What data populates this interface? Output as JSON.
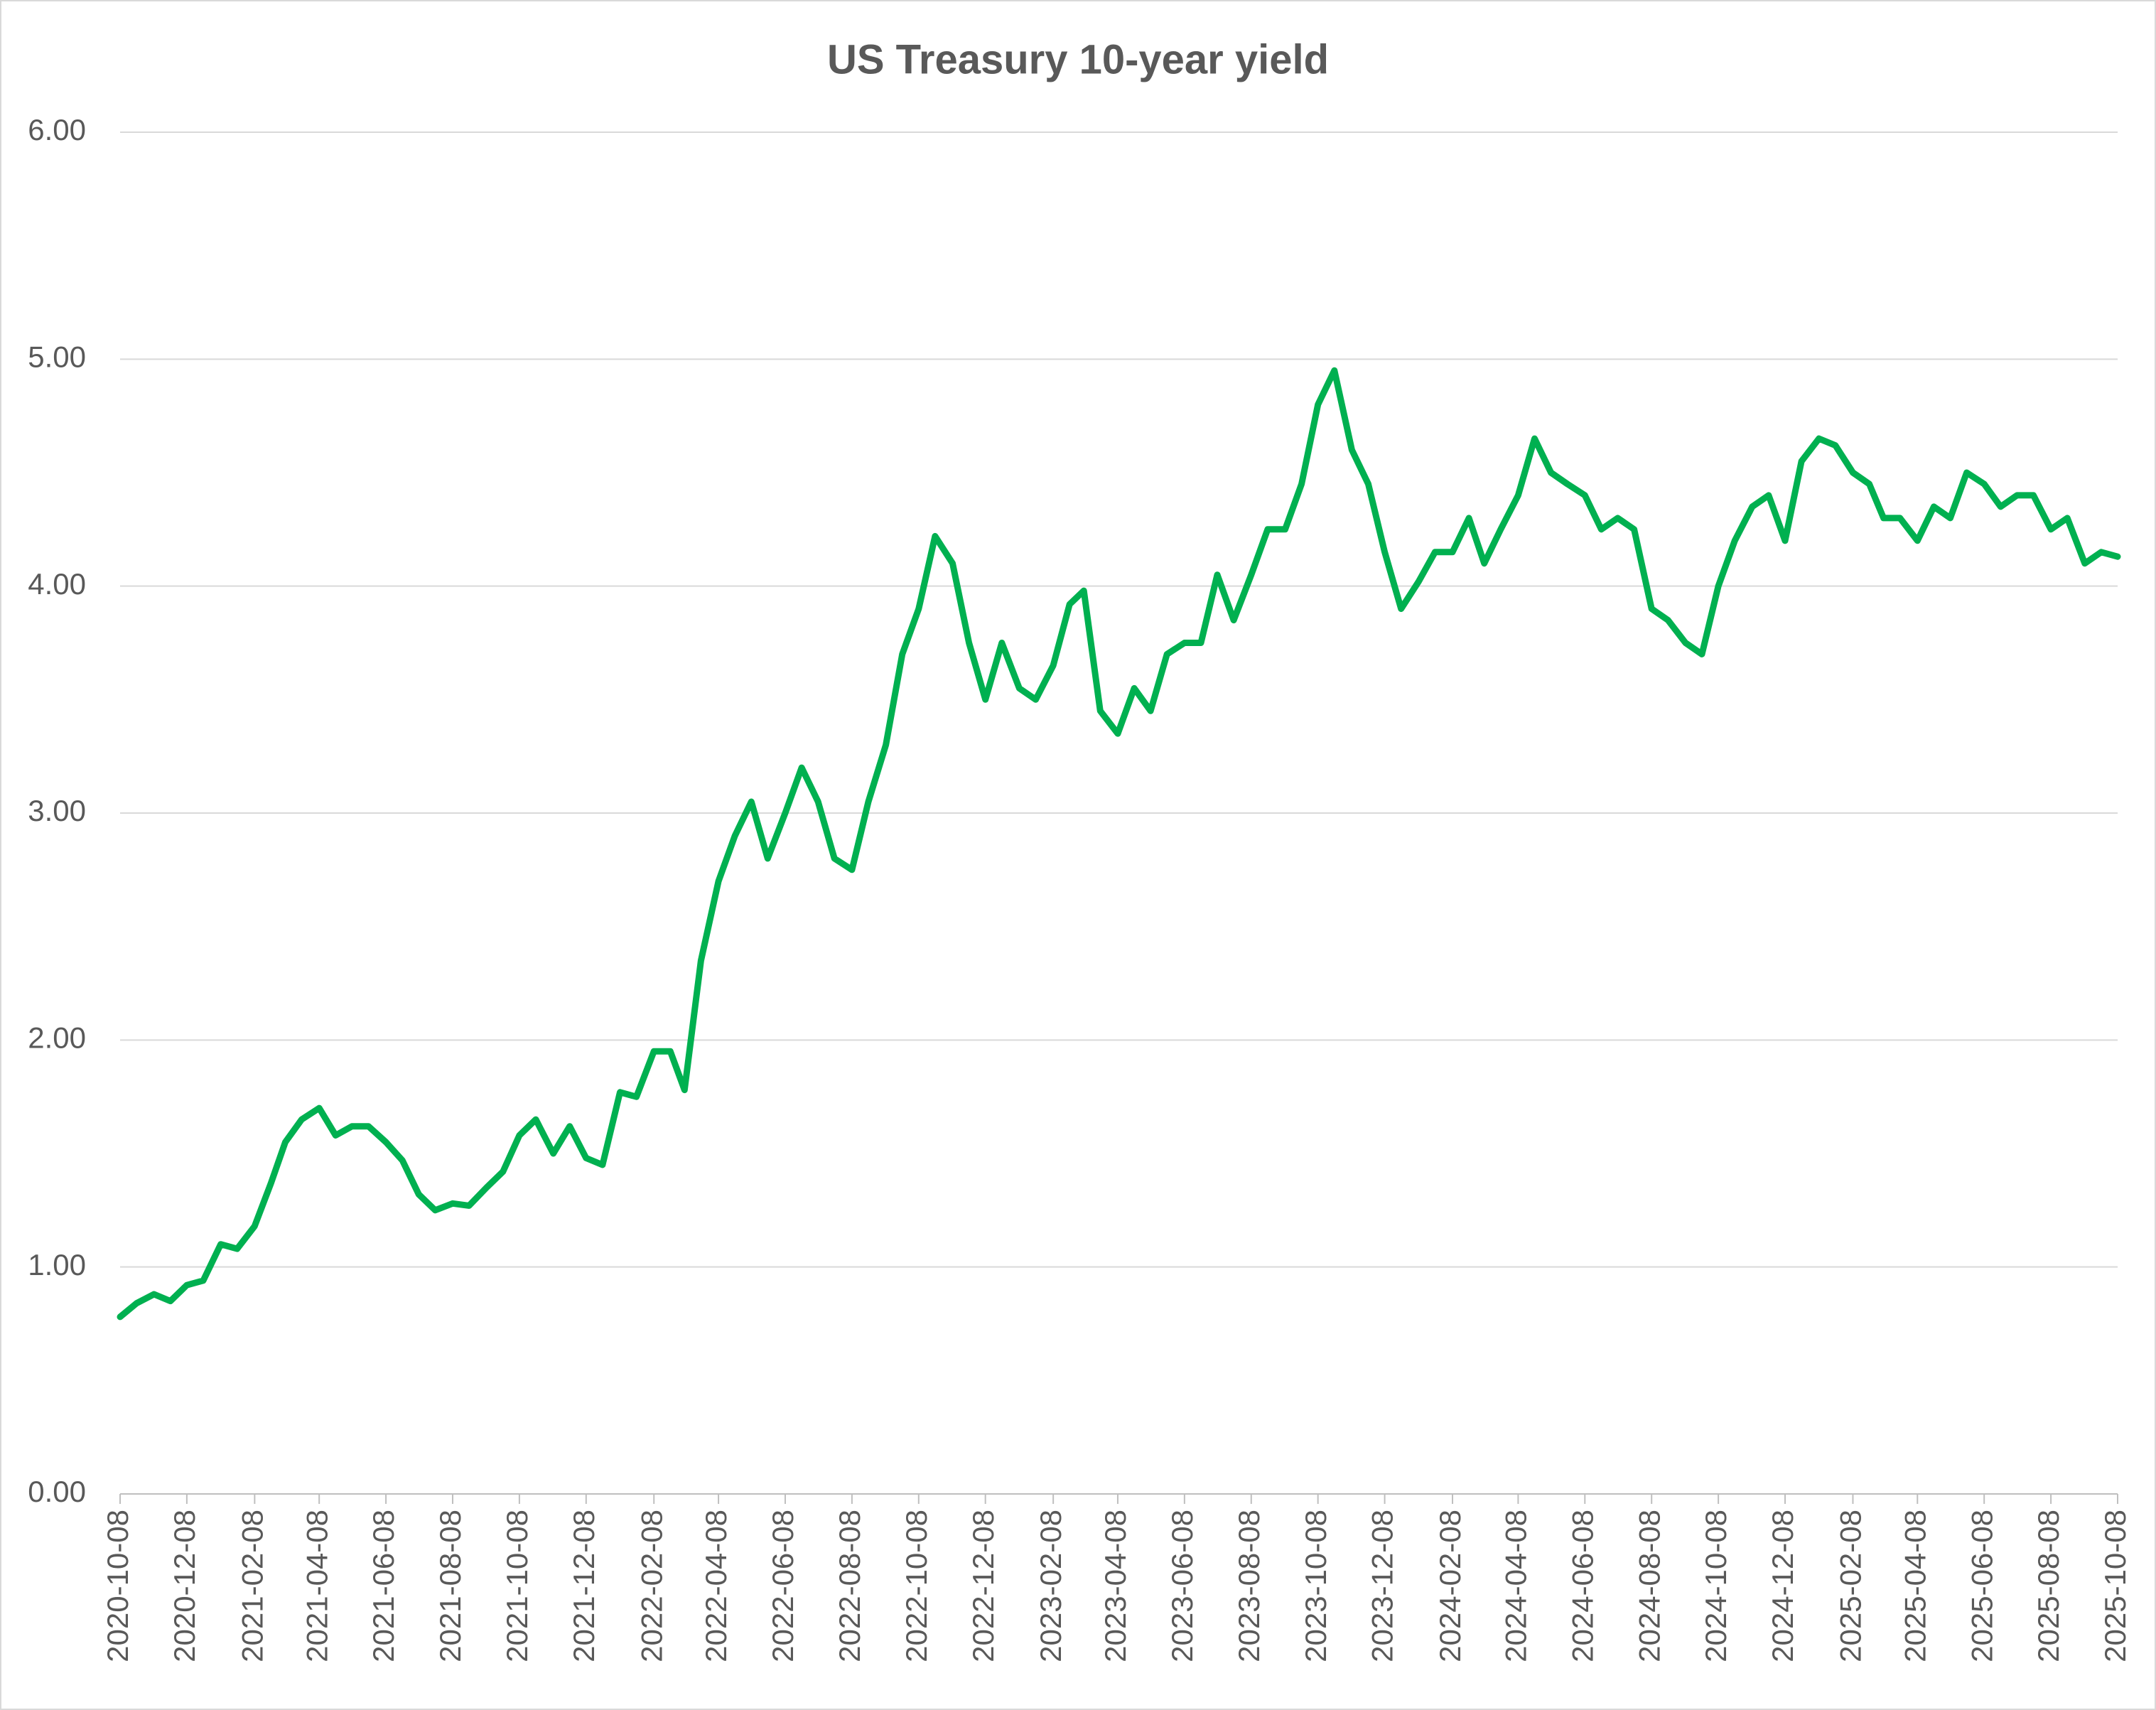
{
  "chart_data": {
    "type": "line",
    "title": "US Treasury 10-year yield",
    "color": "#00b050",
    "grid": true,
    "x": [
      "2020-10-08",
      "2020-10-23",
      "2020-11-08",
      "2020-11-23",
      "2020-12-08",
      "2020-12-23",
      "2021-01-08",
      "2021-01-23",
      "2021-02-08",
      "2021-02-23",
      "2021-03-08",
      "2021-03-23",
      "2021-04-08",
      "2021-04-23",
      "2021-05-08",
      "2021-05-23",
      "2021-06-08",
      "2021-06-23",
      "2021-07-08",
      "2021-07-23",
      "2021-08-08",
      "2021-08-23",
      "2021-09-08",
      "2021-09-23",
      "2021-10-08",
      "2021-10-23",
      "2021-11-08",
      "2021-11-23",
      "2021-12-08",
      "2021-12-23",
      "2022-01-08",
      "2022-01-23",
      "2022-02-08",
      "2022-02-23",
      "2022-03-08",
      "2022-03-23",
      "2022-04-08",
      "2022-04-23",
      "2022-05-08",
      "2022-05-23",
      "2022-06-08",
      "2022-06-23",
      "2022-07-08",
      "2022-07-23",
      "2022-08-08",
      "2022-08-23",
      "2022-09-08",
      "2022-09-23",
      "2022-10-08",
      "2022-10-23",
      "2022-11-08",
      "2022-11-23",
      "2022-12-08",
      "2022-12-23",
      "2023-01-08",
      "2023-01-23",
      "2023-02-08",
      "2023-02-23",
      "2023-03-08",
      "2023-03-23",
      "2023-04-08",
      "2023-04-23",
      "2023-05-08",
      "2023-05-23",
      "2023-06-08",
      "2023-06-23",
      "2023-07-08",
      "2023-07-23",
      "2023-08-08",
      "2023-08-23",
      "2023-09-08",
      "2023-09-23",
      "2023-10-08",
      "2023-10-23",
      "2023-11-08",
      "2023-11-23",
      "2023-12-08",
      "2023-12-23",
      "2024-01-08",
      "2024-01-23",
      "2024-02-08",
      "2024-02-23",
      "2024-03-08",
      "2024-03-23",
      "2024-04-08",
      "2024-04-23",
      "2024-05-08",
      "2024-05-23",
      "2024-06-08",
      "2024-06-23",
      "2024-07-08",
      "2024-07-23",
      "2024-08-08",
      "2024-08-23",
      "2024-09-08",
      "2024-09-23",
      "2024-10-08",
      "2024-10-23",
      "2024-11-08",
      "2024-11-23",
      "2024-12-08",
      "2024-12-23",
      "2025-01-08",
      "2025-01-23",
      "2025-02-08",
      "2025-02-23",
      "2025-03-08",
      "2025-03-23",
      "2025-04-08",
      "2025-04-23",
      "2025-05-08",
      "2025-05-23",
      "2025-06-08",
      "2025-06-23",
      "2025-07-08",
      "2025-07-23",
      "2025-08-08",
      "2025-08-23",
      "2025-09-08",
      "2025-09-23",
      "2025-10-08"
    ],
    "values": [
      0.78,
      0.84,
      0.88,
      0.85,
      0.92,
      0.94,
      1.1,
      1.08,
      1.18,
      1.37,
      1.55,
      1.65,
      1.7,
      1.58,
      1.62,
      1.62,
      1.55,
      1.47,
      1.32,
      1.25,
      1.28,
      1.27,
      1.35,
      1.42,
      1.58,
      1.65,
      1.5,
      1.62,
      1.48,
      1.45,
      1.77,
      1.75,
      1.95,
      1.95,
      1.78,
      2.35,
      2.7,
      2.9,
      3.05,
      2.8,
      3.0,
      3.2,
      3.05,
      2.8,
      2.75,
      3.05,
      3.3,
      3.7,
      3.9,
      4.22,
      4.1,
      3.75,
      3.5,
      3.75,
      3.55,
      3.5,
      3.65,
      3.92,
      3.98,
      3.45,
      3.35,
      3.55,
      3.45,
      3.7,
      3.75,
      3.75,
      4.05,
      3.85,
      4.05,
      4.25,
      4.25,
      4.45,
      4.8,
      4.95,
      4.6,
      4.45,
      4.15,
      3.9,
      4.02,
      4.15,
      4.15,
      4.3,
      4.1,
      4.25,
      4.4,
      4.65,
      4.5,
      4.45,
      4.4,
      4.25,
      4.3,
      4.25,
      3.9,
      3.85,
      3.75,
      3.7,
      4.0,
      4.2,
      4.35,
      4.4,
      4.2,
      4.55,
      4.65,
      4.62,
      4.5,
      4.45,
      4.3,
      4.3,
      4.2,
      4.35,
      4.3,
      4.5,
      4.45,
      4.35,
      4.4,
      4.4,
      4.25,
      4.3,
      4.1,
      4.15,
      4.13
    ],
    "xlim": [
      "2020-10-08",
      "2025-10-08"
    ],
    "xticks": [
      "2020-10-08",
      "2020-12-08",
      "2021-02-08",
      "2021-04-08",
      "2021-06-08",
      "2021-08-08",
      "2021-10-08",
      "2021-12-08",
      "2022-02-08",
      "2022-04-08",
      "2022-06-08",
      "2022-08-08",
      "2022-10-08",
      "2022-12-08",
      "2023-02-08",
      "2023-04-08",
      "2023-06-08",
      "2023-08-08",
      "2023-10-08",
      "2023-12-08",
      "2024-02-08",
      "2024-04-08",
      "2024-06-08",
      "2024-08-08",
      "2024-10-08",
      "2024-12-08",
      "2025-02-08",
      "2025-04-08",
      "2025-06-08",
      "2025-08-08",
      "2025-10-08"
    ],
    "ylim": [
      0,
      6
    ],
    "yticks": [
      {
        "value": 0,
        "label": "0.00"
      },
      {
        "value": 1,
        "label": "1.00"
      },
      {
        "value": 2,
        "label": "2.00"
      },
      {
        "value": 3,
        "label": "3.00"
      },
      {
        "value": 4,
        "label": "4.00"
      },
      {
        "value": 5,
        "label": "5.00"
      },
      {
        "value": 6,
        "label": "6.00"
      }
    ]
  }
}
